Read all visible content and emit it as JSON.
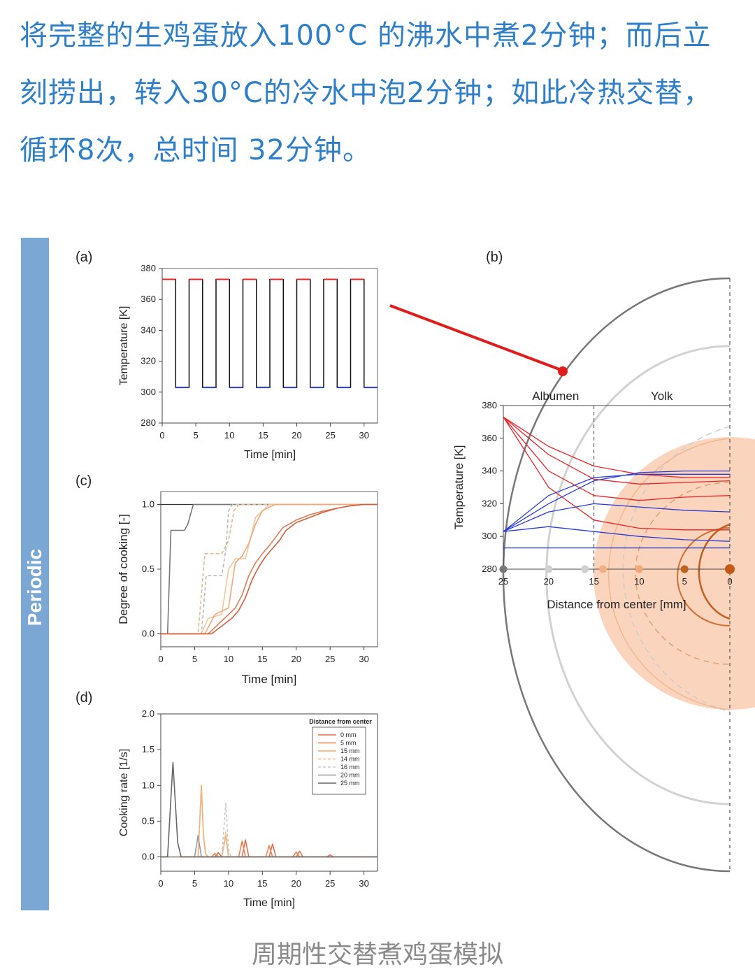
{
  "intro_text": "将完整的生鸡蛋放入100°C 的沸水中煮2分钟；而后立刻捞出，转入30°C的冷水中泡2分钟；如此冷热交替，循环8次，总时间 32分钟。",
  "sidebar_label": "Periodic",
  "caption": "周期性交替煮鸡蛋模拟",
  "colors": {
    "text_blue": "#2f7fc8",
    "sidebar": "#7ba7d4",
    "hot": "#e8262a",
    "cold": "#2a3bd6",
    "yolk": "#f7c9a8"
  },
  "chart_data": [
    {
      "panel": "(a)",
      "type": "line",
      "xlabel": "Time [min]",
      "ylabel": "Temperature [K]",
      "xlim": [
        0,
        32
      ],
      "ylim": [
        280,
        380
      ],
      "xticks": [
        0,
        5,
        10,
        15,
        20,
        25,
        30
      ],
      "yticks": [
        280,
        300,
        320,
        340,
        360,
        380
      ],
      "series": [
        {
          "x": [
            0,
            2,
            2,
            4,
            4,
            6,
            6,
            8,
            8,
            10,
            10,
            12,
            12,
            14,
            14,
            16,
            16,
            18,
            18,
            20,
            20,
            22,
            22,
            24,
            24,
            26,
            26,
            28,
            28,
            30,
            30,
            32
          ],
          "y": [
            373,
            373,
            303,
            303,
            373,
            373,
            303,
            303,
            373,
            373,
            303,
            303,
            373,
            373,
            303,
            303,
            373,
            373,
            303,
            303,
            373,
            373,
            303,
            303,
            373,
            373,
            303,
            303,
            373,
            373,
            303,
            303
          ]
        }
      ]
    },
    {
      "panel": "(b)",
      "type": "line",
      "xlabel": "Distance from center [mm]",
      "ylabel": "Temperature [K]",
      "region_labels": [
        "Albumen",
        "Yolk"
      ],
      "xlim": [
        25,
        0
      ],
      "ylim": [
        280,
        380
      ],
      "xticks": [
        25,
        20,
        15,
        10,
        5,
        0
      ],
      "yticks": [
        280,
        300,
        320,
        340,
        360,
        380
      ],
      "boundary_x": 15,
      "series": [
        {
          "color": "hot",
          "x": [
            25,
            20,
            15,
            10,
            5,
            0
          ],
          "y": [
            373,
            355,
            343,
            338,
            336,
            336
          ]
        },
        {
          "color": "hot",
          "x": [
            25,
            20,
            15,
            10,
            5,
            0
          ],
          "y": [
            373,
            350,
            335,
            332,
            333,
            334
          ]
        },
        {
          "color": "hot",
          "x": [
            25,
            20,
            15,
            10,
            5,
            0
          ],
          "y": [
            373,
            340,
            325,
            322,
            324,
            325
          ]
        },
        {
          "color": "hot",
          "x": [
            25,
            20,
            15,
            10,
            5,
            0
          ],
          "y": [
            373,
            330,
            310,
            305,
            304,
            304
          ]
        },
        {
          "color": "cold",
          "x": [
            25,
            20,
            15,
            10,
            5,
            0
          ],
          "y": [
            303,
            320,
            334,
            339,
            340,
            340
          ]
        },
        {
          "color": "cold",
          "x": [
            25,
            20,
            15,
            10,
            5,
            0
          ],
          "y": [
            303,
            325,
            336,
            338,
            338,
            338
          ]
        },
        {
          "color": "cold",
          "x": [
            25,
            20,
            15,
            10,
            5,
            0
          ],
          "y": [
            303,
            315,
            320,
            318,
            316,
            315
          ]
        },
        {
          "color": "cold",
          "x": [
            25,
            20,
            15,
            10,
            5,
            0
          ],
          "y": [
            303,
            306,
            303,
            300,
            298,
            297
          ]
        },
        {
          "color": "cold",
          "x": [
            25,
            20,
            15,
            10,
            5,
            0
          ],
          "y": [
            293,
            293,
            293,
            293,
            293,
            293
          ]
        }
      ]
    },
    {
      "panel": "(c)",
      "type": "line",
      "xlabel": "Time [min]",
      "ylabel": "Degree of cooking [-]",
      "xlim": [
        0,
        32
      ],
      "ylim": [
        -0.1,
        1.1
      ],
      "xticks": [
        0,
        5,
        10,
        15,
        20,
        25,
        30
      ],
      "yticks": [
        "0.0",
        "0.5",
        "1.0"
      ],
      "series": [
        {
          "name": "25 mm",
          "x": [
            0,
            1,
            1.5,
            2,
            3.5,
            4,
            4.8,
            5.5,
            32
          ],
          "y": [
            0,
            0,
            0.8,
            0.8,
            0.8,
            0.85,
            1,
            1,
            1
          ]
        },
        {
          "name": "20 mm",
          "x": [
            0,
            6,
            6.7,
            7,
            9,
            9.6,
            10,
            10.6,
            12,
            14,
            32
          ],
          "y": [
            0,
            0,
            0.45,
            0.45,
            0.45,
            0.65,
            0.95,
            1,
            1,
            1,
            1
          ]
        },
        {
          "name": "16 mm",
          "x": [
            0,
            5.5,
            6.5,
            7,
            9,
            10,
            10.8,
            11.5,
            14,
            32
          ],
          "y": [
            0,
            0,
            0.62,
            0.62,
            0.62,
            0.72,
            0.95,
            1,
            1,
            1
          ]
        },
        {
          "name": "14 mm",
          "x": [
            0,
            6,
            7,
            9,
            10,
            11,
            12.5,
            14,
            16,
            32
          ],
          "y": [
            0,
            0,
            0.12,
            0.15,
            0.5,
            0.58,
            0.58,
            0.9,
            1,
            1
          ]
        },
        {
          "name": "15 mm",
          "x": [
            0,
            6.5,
            8,
            10,
            11,
            12,
            13,
            14,
            15,
            16,
            17,
            32
          ],
          "y": [
            0,
            0,
            0.15,
            0.2,
            0.55,
            0.6,
            0.7,
            0.85,
            0.95,
            0.98,
            1,
            1
          ]
        },
        {
          "name": "5 mm",
          "x": [
            0,
            7,
            8,
            9,
            10,
            11,
            12,
            13,
            14,
            15,
            16,
            17,
            18,
            20,
            22,
            24,
            26,
            28,
            30,
            32
          ],
          "y": [
            0,
            0,
            0.05,
            0.1,
            0.15,
            0.2,
            0.3,
            0.45,
            0.55,
            0.62,
            0.68,
            0.75,
            0.82,
            0.88,
            0.92,
            0.95,
            0.97,
            0.99,
            1,
            1
          ]
        },
        {
          "name": "0 mm",
          "x": [
            0,
            7.5,
            8.5,
            9.5,
            10.5,
            11.5,
            12.5,
            13.5,
            14.5,
            15.5,
            16.5,
            17.5,
            18.5,
            20,
            22,
            24,
            26,
            28,
            30,
            32
          ],
          "y": [
            0,
            0,
            0.04,
            0.08,
            0.12,
            0.18,
            0.28,
            0.42,
            0.52,
            0.6,
            0.66,
            0.72,
            0.8,
            0.86,
            0.9,
            0.94,
            0.97,
            0.99,
            1,
            1
          ]
        }
      ]
    },
    {
      "panel": "(d)",
      "type": "line",
      "xlabel": "Time [min]",
      "ylabel": "Cooking rate [1/s]",
      "xlim": [
        0,
        32
      ],
      "ylim": [
        -0.2,
        2.0
      ],
      "xticks": [
        0,
        5,
        10,
        15,
        20,
        25,
        30
      ],
      "yticks": [
        "0.0",
        "0.5",
        "1.0",
        "1.5",
        "2.0"
      ],
      "legend_title": "Distance from center",
      "legend_position": "top-right",
      "series": [
        {
          "name": "0 mm",
          "color": "#e07050",
          "dash": "",
          "x": [
            0,
            8,
            8.5,
            9,
            12,
            12.5,
            13,
            16,
            16.5,
            17,
            20,
            20.5,
            21,
            24.5,
            25,
            25.5,
            32
          ],
          "y": [
            0,
            0,
            0.06,
            0,
            0,
            0.24,
            0,
            0,
            0.18,
            0,
            0,
            0.08,
            0,
            0,
            0.03,
            0,
            0
          ]
        },
        {
          "name": "5 mm",
          "color": "#e8844e",
          "dash": "",
          "x": [
            0,
            7.5,
            8,
            8.5,
            11.5,
            12,
            12.5,
            15.5,
            16,
            16.5,
            19.5,
            20,
            20.5,
            32
          ],
          "y": [
            0,
            0,
            0.05,
            0,
            0,
            0.22,
            0,
            0,
            0.16,
            0,
            0,
            0.07,
            0,
            0
          ]
        },
        {
          "name": "15 mm",
          "color": "#f2a86c",
          "dash": "",
          "x": [
            0,
            5.5,
            6,
            6.3,
            6.6,
            7,
            9,
            9.6,
            10,
            32
          ],
          "y": [
            0,
            0,
            1.0,
            0.3,
            0.05,
            0,
            0,
            0.3,
            0,
            0
          ]
        },
        {
          "name": "14 mm",
          "color": "#f2b888",
          "dash": "4,3",
          "x": [
            0,
            5.5,
            6,
            6.3,
            6.6,
            7,
            9,
            9.6,
            10,
            32
          ],
          "y": [
            0,
            0,
            0.95,
            0.35,
            0.05,
            0,
            0,
            0.35,
            0,
            0
          ]
        },
        {
          "name": "16 mm",
          "color": "#c8c8c8",
          "dash": "4,3",
          "x": [
            0,
            9,
            9.6,
            10,
            10.4,
            32
          ],
          "y": [
            0,
            0,
            0.76,
            0.1,
            0,
            0
          ]
        },
        {
          "name": "20 mm",
          "color": "#9a9a9a",
          "dash": "",
          "x": [
            0,
            5,
            5.5,
            6,
            32
          ],
          "y": [
            0,
            0,
            0.3,
            0,
            0
          ]
        },
        {
          "name": "25 mm",
          "color": "#666666",
          "dash": "",
          "x": [
            0,
            1,
            1.8,
            2.5,
            3,
            32
          ],
          "y": [
            0,
            0,
            1.32,
            0.2,
            0,
            0
          ]
        }
      ]
    }
  ]
}
